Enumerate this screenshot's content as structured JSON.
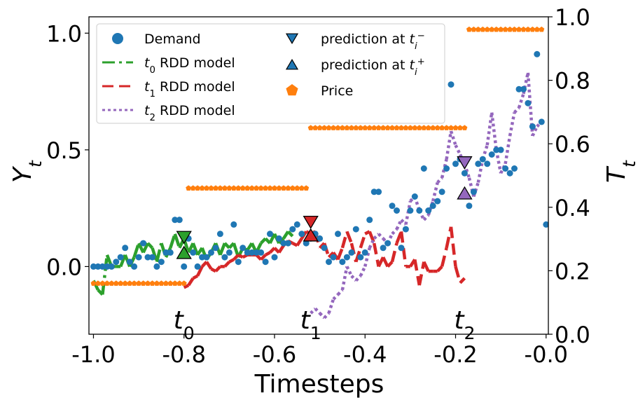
{
  "chart_data": {
    "type": "scatter",
    "xlabel": "Timesteps",
    "ylabel_left": "Y",
    "ylabel_left_sub": "t",
    "ylabel_right": "T",
    "ylabel_right_sub": "t",
    "xlim": [
      -1.01,
      0.005
    ],
    "ylim_left": [
      -0.29,
      1.07
    ],
    "ylim_right": [
      0.0,
      1.0
    ],
    "x_ticks": [
      -1.0,
      -0.8,
      -0.6,
      -0.4,
      -0.2,
      0.0
    ],
    "x_tick_labels": [
      "-1.0",
      "-0.8",
      "-0.6",
      "-0.4",
      "-0.2",
      "-0.0"
    ],
    "y_left_ticks": [
      0.0,
      0.5,
      1.0
    ],
    "y_left_tick_labels": [
      "0.0",
      "0.5",
      "1.0"
    ],
    "y_right_ticks": [
      0.0,
      0.2,
      0.4,
      0.6,
      0.8,
      1.0
    ],
    "y_right_tick_labels": [
      "0.0",
      "0.2",
      "0.4",
      "0.6",
      "0.8",
      "1.0"
    ],
    "grid": false,
    "legend_placement": "top-left",
    "legend": [
      {
        "key": "demand",
        "label": "Demand",
        "sub": "",
        "sup": "",
        "marker": "circle",
        "color": "#1f77b4"
      },
      {
        "key": "t0",
        "label": " RDD model",
        "prefix": "t",
        "sub": "0",
        "sup": "",
        "marker": "dashdot",
        "color": "#2ca02c"
      },
      {
        "key": "t1",
        "label": " RDD model",
        "prefix": "t",
        "sub": "1",
        "sup": "",
        "marker": "dashed",
        "color": "#d62728"
      },
      {
        "key": "t2",
        "label": " RDD model",
        "prefix": "t",
        "sub": "2",
        "sup": "",
        "marker": "dotted",
        "color": "#9467bd"
      },
      {
        "key": "pred_minus",
        "label": "prediction at ",
        "prefix": "",
        "var": "t",
        "sub": "i",
        "sup": "−",
        "marker": "triangle-down",
        "color": "#1f77b4"
      },
      {
        "key": "pred_plus",
        "label": "prediction at ",
        "prefix": "",
        "var": "t",
        "sub": "i",
        "sup": "+",
        "marker": "triangle-up",
        "color": "#1f77b4"
      },
      {
        "key": "price",
        "label": "Price",
        "sub": "",
        "sup": "",
        "marker": "pentagon",
        "color": "#ff7f0e"
      }
    ],
    "annotations": [
      {
        "base": "t",
        "sub": "0",
        "x": -0.8
      },
      {
        "base": "t",
        "sub": "1",
        "x": -0.52
      },
      {
        "base": "t",
        "sub": "2",
        "x": -0.18
      }
    ],
    "colors": {
      "demand": "#1f77b4",
      "price": "#ff7f0e",
      "t0": "#2ca02c",
      "t1": "#d62728",
      "t2": "#9467bd"
    },
    "series": [
      {
        "name": "Demand",
        "axis": "left",
        "style": "scatter",
        "x": [
          -1.0,
          -0.99,
          -0.98,
          -0.97,
          -0.96,
          -0.95,
          -0.94,
          -0.93,
          -0.92,
          -0.91,
          -0.9,
          -0.89,
          -0.88,
          -0.87,
          -0.86,
          -0.85,
          -0.84,
          -0.83,
          -0.82,
          -0.81,
          -0.8,
          -0.79,
          -0.78,
          -0.77,
          -0.76,
          -0.75,
          -0.74,
          -0.73,
          -0.72,
          -0.71,
          -0.7,
          -0.69,
          -0.68,
          -0.67,
          -0.66,
          -0.65,
          -0.64,
          -0.63,
          -0.62,
          -0.61,
          -0.6,
          -0.59,
          -0.58,
          -0.57,
          -0.56,
          -0.55,
          -0.54,
          -0.53,
          -0.52,
          -0.51,
          -0.5,
          -0.49,
          -0.48,
          -0.47,
          -0.46,
          -0.45,
          -0.44,
          -0.43,
          -0.42,
          -0.41,
          -0.4,
          -0.39,
          -0.38,
          -0.37,
          -0.36,
          -0.35,
          -0.34,
          -0.33,
          -0.32,
          -0.31,
          -0.3,
          -0.29,
          -0.28,
          -0.27,
          -0.26,
          -0.25,
          -0.24,
          -0.23,
          -0.22,
          -0.21,
          -0.2,
          -0.19,
          -0.18,
          -0.17,
          -0.16,
          -0.15,
          -0.14,
          -0.13,
          -0.12,
          -0.11,
          -0.1,
          -0.09,
          -0.08,
          -0.07,
          -0.06,
          -0.05,
          -0.04,
          -0.03,
          -0.02,
          -0.01,
          0.0
        ],
        "y": [
          0.0,
          0.0,
          0.0,
          0.0,
          0.0,
          0.02,
          0.04,
          0.08,
          0.02,
          0.0,
          0.04,
          0.1,
          0.04,
          0.04,
          0.0,
          0.02,
          0.06,
          0.06,
          0.2,
          0.2,
          0.0,
          0.12,
          0.06,
          0.0,
          0.04,
          0.04,
          0.06,
          0.08,
          0.14,
          0.04,
          0.06,
          0.18,
          0.02,
          0.08,
          0.06,
          0.06,
          0.06,
          0.06,
          0.02,
          0.14,
          0.04,
          0.12,
          0.1,
          0.1,
          0.16,
          0.18,
          0.14,
          0.1,
          0.12,
          0.14,
          0.12,
          0.08,
          0.02,
          0.04,
          0.14,
          0.02,
          0.04,
          0.06,
          0.16,
          0.04,
          0.06,
          0.2,
          0.32,
          0.32,
          0.08,
          0.1,
          0.26,
          0.24,
          0.08,
          0.16,
          0.24,
          0.3,
          0.24,
          0.42,
          0.24,
          0.26,
          0.28,
          0.32,
          0.42,
          0.78,
          0.44,
          0.46,
          0.4,
          0.26,
          0.32,
          0.44,
          0.46,
          0.44,
          0.48,
          0.5,
          0.5,
          0.42,
          0.4,
          0.42,
          0.76,
          0.76,
          0.7,
          0.6,
          0.91,
          0.62,
          0.18
        ]
      },
      {
        "name": "Price",
        "axis": "right",
        "style": "pentagon",
        "x": [
          -1.0,
          -0.99,
          -0.98,
          -0.97,
          -0.96,
          -0.95,
          -0.94,
          -0.93,
          -0.92,
          -0.91,
          -0.9,
          -0.89,
          -0.88,
          -0.87,
          -0.86,
          -0.85,
          -0.84,
          -0.83,
          -0.82,
          -0.81,
          -0.8,
          -0.79,
          -0.78,
          -0.77,
          -0.76,
          -0.75,
          -0.74,
          -0.73,
          -0.72,
          -0.71,
          -0.7,
          -0.69,
          -0.68,
          -0.67,
          -0.66,
          -0.65,
          -0.64,
          -0.63,
          -0.62,
          -0.61,
          -0.6,
          -0.59,
          -0.58,
          -0.57,
          -0.56,
          -0.55,
          -0.54,
          -0.53,
          -0.52,
          -0.51,
          -0.5,
          -0.49,
          -0.48,
          -0.47,
          -0.46,
          -0.45,
          -0.44,
          -0.43,
          -0.42,
          -0.41,
          -0.4,
          -0.39,
          -0.38,
          -0.37,
          -0.36,
          -0.35,
          -0.34,
          -0.33,
          -0.32,
          -0.31,
          -0.3,
          -0.29,
          -0.28,
          -0.27,
          -0.26,
          -0.25,
          -0.24,
          -0.23,
          -0.22,
          -0.21,
          -0.2,
          -0.19,
          -0.18,
          -0.17,
          -0.16,
          -0.15,
          -0.14,
          -0.13,
          -0.12,
          -0.11,
          -0.1,
          -0.09,
          -0.08,
          -0.07,
          -0.06,
          -0.05,
          -0.04,
          -0.03,
          -0.02,
          -0.01
        ],
        "y": [
          0.16,
          0.16,
          0.16,
          0.16,
          0.16,
          0.16,
          0.16,
          0.16,
          0.16,
          0.16,
          0.16,
          0.16,
          0.16,
          0.16,
          0.16,
          0.16,
          0.16,
          0.16,
          0.16,
          0.16,
          0.16,
          0.46,
          0.46,
          0.46,
          0.46,
          0.46,
          0.46,
          0.46,
          0.46,
          0.46,
          0.46,
          0.46,
          0.46,
          0.46,
          0.46,
          0.46,
          0.46,
          0.46,
          0.46,
          0.46,
          0.46,
          0.46,
          0.46,
          0.46,
          0.46,
          0.46,
          0.46,
          0.46,
          0.65,
          0.65,
          0.65,
          0.65,
          0.65,
          0.65,
          0.65,
          0.65,
          0.65,
          0.65,
          0.65,
          0.65,
          0.65,
          0.65,
          0.65,
          0.65,
          0.65,
          0.65,
          0.65,
          0.65,
          0.65,
          0.65,
          0.65,
          0.65,
          0.65,
          0.65,
          0.65,
          0.65,
          0.65,
          0.65,
          0.65,
          0.65,
          0.65,
          0.65,
          0.65,
          0.96,
          0.96,
          0.96,
          0.96,
          0.96,
          0.96,
          0.96,
          0.96,
          0.96,
          0.96,
          0.96,
          0.96,
          0.96,
          0.96,
          0.96,
          0.96,
          0.96
        ]
      },
      {
        "name": "t0 RDD model",
        "axis": "left",
        "style": "dashdot",
        "x": [
          -1.0,
          -0.99,
          -0.98,
          -0.97,
          -0.96,
          -0.95,
          -0.94,
          -0.93,
          -0.92,
          -0.91,
          -0.9,
          -0.89,
          -0.88,
          -0.87,
          -0.86,
          -0.85,
          -0.84,
          -0.83,
          -0.82,
          -0.81,
          -0.8,
          -0.79,
          -0.78,
          -0.77,
          -0.76,
          -0.75,
          -0.74,
          -0.73,
          -0.72,
          -0.71,
          -0.7,
          -0.69,
          -0.68,
          -0.67,
          -0.66,
          -0.65,
          -0.64,
          -0.63,
          -0.62,
          -0.61,
          -0.6,
          -0.59,
          -0.58,
          -0.57,
          -0.56
        ],
        "y": [
          -0.06,
          -0.1,
          -0.12,
          0.05,
          0.0,
          0.0,
          0.0,
          0.05,
          0.0,
          0.04,
          0.1,
          0.06,
          0.1,
          0.08,
          0.02,
          0.1,
          0.04,
          0.08,
          0.14,
          0.08,
          0.12,
          0.06,
          0.1,
          0.05,
          0.08,
          0.03,
          0.06,
          0.1,
          0.05,
          0.1,
          0.08,
          0.1,
          0.04,
          0.08,
          0.07,
          0.1,
          0.06,
          0.1,
          0.12,
          0.1,
          0.14,
          0.1,
          0.12,
          0.15,
          0.13
        ]
      },
      {
        "name": "t1 RDD model",
        "axis": "left",
        "style": "dashed",
        "x": [
          -0.8,
          -0.79,
          -0.78,
          -0.77,
          -0.76,
          -0.75,
          -0.74,
          -0.73,
          -0.72,
          -0.71,
          -0.7,
          -0.69,
          -0.68,
          -0.67,
          -0.66,
          -0.65,
          -0.64,
          -0.63,
          -0.62,
          -0.61,
          -0.6,
          -0.59,
          -0.58,
          -0.57,
          -0.56,
          -0.55,
          -0.54,
          -0.53,
          -0.52,
          -0.51,
          -0.5,
          -0.49,
          -0.48,
          -0.47,
          -0.46,
          -0.45,
          -0.44,
          -0.43,
          -0.42,
          -0.41,
          -0.4,
          -0.39,
          -0.38,
          -0.37,
          -0.36,
          -0.35,
          -0.34,
          -0.33,
          -0.32,
          -0.31,
          -0.3,
          -0.29,
          -0.28,
          -0.27,
          -0.26,
          -0.25,
          -0.24,
          -0.23,
          -0.22,
          -0.21,
          -0.2,
          -0.19,
          -0.18
        ],
        "y": [
          -0.09,
          -0.08,
          -0.05,
          -0.04,
          0.0,
          0.02,
          -0.01,
          -0.02,
          0.0,
          0.0,
          0.02,
          0.03,
          0.05,
          0.04,
          0.05,
          0.05,
          0.05,
          0.03,
          0.05,
          0.06,
          0.08,
          0.06,
          0.09,
          0.11,
          0.1,
          0.09,
          0.12,
          0.15,
          0.14,
          0.15,
          0.08,
          0.1,
          0.04,
          0.06,
          0.03,
          0.08,
          0.15,
          0.1,
          0.02,
          0.08,
          0.14,
          0.15,
          0.1,
          0.0,
          0.04,
          0.0,
          0.02,
          0.1,
          0.15,
          0.0,
          0.0,
          0.03,
          -0.08,
          0.02,
          -0.02,
          -0.02,
          -0.02,
          0.0,
          0.08,
          0.17,
          0.0,
          -0.07,
          -0.05
        ]
      },
      {
        "name": "t2 RDD model",
        "axis": "left",
        "style": "dotted",
        "x": [
          -0.52,
          -0.51,
          -0.5,
          -0.49,
          -0.48,
          -0.47,
          -0.46,
          -0.45,
          -0.44,
          -0.43,
          -0.42,
          -0.41,
          -0.4,
          -0.39,
          -0.38,
          -0.37,
          -0.36,
          -0.35,
          -0.34,
          -0.33,
          -0.32,
          -0.31,
          -0.3,
          -0.29,
          -0.28,
          -0.27,
          -0.26,
          -0.25,
          -0.24,
          -0.23,
          -0.22,
          -0.21,
          -0.2,
          -0.19,
          -0.18,
          -0.17,
          -0.16,
          -0.15,
          -0.14,
          -0.13,
          -0.12,
          -0.11,
          -0.1,
          -0.09,
          -0.08,
          -0.07,
          -0.06,
          -0.05,
          -0.04,
          -0.03,
          -0.02,
          -0.01
        ],
        "y": [
          -0.2,
          -0.18,
          -0.2,
          -0.22,
          -0.2,
          -0.14,
          -0.12,
          -0.1,
          0.0,
          -0.04,
          -0.06,
          -0.04,
          0.0,
          0.08,
          0.12,
          0.14,
          0.12,
          0.1,
          0.14,
          0.16,
          0.2,
          0.18,
          0.28,
          0.3,
          0.24,
          0.2,
          0.22,
          0.28,
          0.36,
          0.38,
          0.46,
          0.58,
          0.52,
          0.48,
          0.44,
          0.38,
          0.3,
          0.36,
          0.46,
          0.52,
          0.66,
          0.5,
          0.4,
          0.44,
          0.56,
          0.66,
          0.68,
          0.74,
          0.83,
          0.56,
          0.6,
          0.62
        ]
      }
    ],
    "prediction_markers": [
      {
        "x": -0.8,
        "y": 0.125,
        "dir": "down",
        "color": "#2ca02c"
      },
      {
        "x": -0.8,
        "y": 0.06,
        "dir": "up",
        "color": "#2ca02c"
      },
      {
        "x": -0.52,
        "y": 0.19,
        "dir": "down",
        "color": "#d62728"
      },
      {
        "x": -0.52,
        "y": 0.135,
        "dir": "up",
        "color": "#d62728"
      },
      {
        "x": -0.18,
        "y": 0.445,
        "dir": "down",
        "color": "#9467bd"
      },
      {
        "x": -0.18,
        "y": 0.315,
        "dir": "up",
        "color": "#9467bd"
      }
    ]
  }
}
